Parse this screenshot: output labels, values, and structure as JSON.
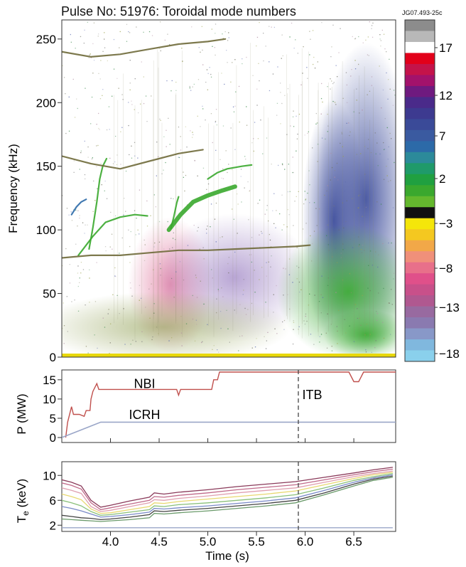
{
  "header": {
    "title": "Pulse No: 51976: Toroidal mode numbers",
    "figure_id": "JG07.493-25c"
  },
  "colors": {
    "axis": "#333333",
    "power_trace": "#c0504d",
    "icrh_trace": "#9aa6c8",
    "te_trace_top": "#8a3a5a",
    "te_trace_bottom": "#555555",
    "itb_marker": "#444444",
    "baseline_band": "#e8d80a"
  },
  "chart_data": [
    {
      "type": "heatmap",
      "name": "spectrogram",
      "ylabel": "Frequency (kHz)",
      "xlabel": "",
      "x_range": [
        3.5,
        6.93
      ],
      "ylim": [
        0,
        265
      ],
      "yticks": [
        0,
        50,
        100,
        150,
        200,
        250
      ],
      "features": [
        {
          "kind": "mode",
          "color_mode": 2,
          "x": [
            3.67,
            3.82,
            3.95,
            4.1,
            4.25,
            4.38
          ],
          "y": [
            80,
            95,
            106,
            110,
            112,
            111
          ]
        },
        {
          "kind": "mode",
          "color_mode": 2,
          "x": [
            4.6,
            4.72,
            4.85,
            5.0,
            5.15,
            5.28
          ],
          "y": [
            100,
            112,
            122,
            127,
            131,
            134
          ]
        },
        {
          "kind": "mode",
          "color_mode": 2,
          "x": [
            3.78,
            3.82,
            3.86,
            3.89,
            3.92,
            3.96
          ],
          "y": [
            85,
            102,
            122,
            140,
            150,
            156
          ]
        },
        {
          "kind": "mode",
          "color_mode": 2,
          "x": [
            4.62,
            4.65,
            4.68,
            4.7
          ],
          "y": [
            101,
            110,
            121,
            126
          ]
        },
        {
          "kind": "mode",
          "color_mode": 2,
          "x": [
            5.0,
            5.1,
            5.2,
            5.35,
            5.45
          ],
          "y": [
            140,
            145,
            148,
            150,
            151
          ]
        },
        {
          "kind": "mode",
          "color_mode": 7,
          "x": [
            3.6,
            3.65,
            3.7,
            3.75
          ],
          "y": [
            112,
            118,
            122,
            124
          ]
        },
        {
          "kind": "mode",
          "color_mode": 0,
          "x": [
            3.5,
            3.8,
            4.1,
            4.4,
            4.7,
            5.0,
            5.3,
            5.6,
            5.9,
            6.05
          ],
          "y": [
            78,
            80,
            80,
            82,
            84,
            84,
            85,
            86,
            87,
            88
          ]
        },
        {
          "kind": "mode",
          "color_mode": 0,
          "x": [
            3.5,
            3.8,
            4.1,
            4.4,
            4.7,
            4.95
          ],
          "y": [
            158,
            152,
            148,
            154,
            160,
            163
          ]
        },
        {
          "kind": "mode",
          "color_mode": 0,
          "x": [
            3.5,
            3.8,
            4.1,
            4.4,
            4.7,
            5.0,
            5.18
          ],
          "y": [
            240,
            236,
            238,
            242,
            246,
            248,
            250
          ]
        }
      ]
    },
    {
      "type": "line",
      "name": "heating-power",
      "ylabel": "P (MW)",
      "xlabel": "",
      "x_range": [
        3.5,
        6.93
      ],
      "ylim": [
        0,
        17
      ],
      "yticks": [
        0,
        5,
        10,
        15
      ],
      "series": [
        {
          "name": "NBI",
          "x": [
            3.54,
            3.56,
            3.6,
            3.62,
            3.66,
            3.68,
            3.73,
            3.75,
            3.79,
            3.8,
            3.82,
            3.86,
            3.88,
            4.68,
            4.7,
            4.72,
            5.04,
            5.06,
            5.1,
            5.12,
            5.18,
            5.2,
            6.45,
            6.5,
            6.55,
            6.6,
            6.93
          ],
          "y": [
            0,
            4,
            8,
            6,
            6,
            6,
            5.5,
            7,
            7,
            10,
            12,
            14,
            12.5,
            12.5,
            11,
            12.5,
            12.5,
            15,
            15,
            17,
            17,
            17,
            17,
            14.5,
            14.5,
            17,
            17
          ]
        },
        {
          "name": "ICRH",
          "x": [
            3.5,
            3.6,
            3.9,
            6.93
          ],
          "y": [
            0,
            1,
            4,
            4
          ]
        }
      ],
      "annotations": [
        {
          "text": "NBI",
          "x": 4.35,
          "y": 12.8
        },
        {
          "text": "ICRH",
          "x": 4.35,
          "y": 4.8
        },
        {
          "text": "ITB",
          "x": 5.97,
          "y": 10
        }
      ],
      "vline": 5.93
    },
    {
      "type": "line",
      "name": "electron-temperature",
      "ylabel": "Te (keV)",
      "xlabel": "Time (s)",
      "xlim": [
        3.5,
        6.93
      ],
      "xticks": [
        4.0,
        4.5,
        5.0,
        5.5,
        6.0,
        6.5
      ],
      "xtick_labels": [
        "4.0",
        "4.5",
        "5.0",
        "5.5",
        "6.0",
        "6.5"
      ],
      "ylim": [
        1,
        12.2
      ],
      "yticks": [
        2,
        6,
        10
      ],
      "x": [
        3.5,
        3.6,
        3.7,
        3.8,
        3.9,
        4.0,
        4.2,
        4.4,
        4.45,
        4.55,
        4.7,
        5.0,
        5.3,
        5.6,
        5.9,
        6.2,
        6.5,
        6.7,
        6.9
      ],
      "series": [
        {
          "y": [
            9.3,
            8.9,
            8.3,
            6.0,
            4.9,
            5.2,
            5.9,
            6.5,
            7.2,
            7.0,
            7.3,
            7.7,
            8.2,
            8.6,
            9.0,
            9.7,
            10.4,
            10.9,
            11.3
          ],
          "color": "#8a3a5a"
        },
        {
          "y": [
            8.8,
            8.4,
            7.8,
            5.6,
            4.5,
            4.8,
            5.4,
            6.0,
            6.6,
            6.5,
            6.8,
            7.2,
            7.7,
            8.1,
            8.5,
            9.3,
            10.1,
            10.6,
            11.0
          ],
          "color": "#c06a8a"
        },
        {
          "y": [
            8.0,
            7.6,
            7.1,
            5.0,
            4.2,
            4.4,
            5.0,
            5.6,
            6.1,
            6.0,
            6.3,
            6.7,
            7.2,
            7.6,
            8.0,
            8.9,
            9.8,
            10.3,
            10.7
          ],
          "color": "#e0a0b0"
        },
        {
          "y": [
            7.0,
            6.6,
            6.1,
            4.6,
            3.9,
            4.0,
            4.5,
            5.0,
            5.6,
            5.5,
            5.8,
            6.2,
            6.6,
            7.0,
            7.5,
            8.5,
            9.5,
            10.1,
            10.5
          ],
          "color": "#e8d870"
        },
        {
          "y": [
            6.0,
            5.6,
            5.1,
            4.2,
            3.6,
            3.7,
            4.1,
            4.5,
            5.1,
            5.0,
            5.3,
            5.6,
            6.0,
            6.4,
            6.9,
            8.0,
            9.2,
            9.8,
            10.3
          ],
          "color": "#8ac07a"
        },
        {
          "y": [
            5.0,
            4.7,
            4.3,
            3.8,
            3.3,
            3.4,
            3.7,
            4.1,
            4.7,
            4.6,
            4.8,
            5.1,
            5.5,
            5.9,
            6.4,
            7.6,
            8.9,
            9.6,
            10.1
          ],
          "color": "#7a8ac8"
        },
        {
          "y": [
            3.6,
            3.4,
            3.2,
            3.1,
            2.9,
            3.0,
            3.3,
            3.7,
            4.3,
            4.2,
            4.4,
            4.7,
            5.1,
            5.5,
            6.0,
            7.2,
            8.6,
            9.4,
            9.9
          ],
          "color": "#444444"
        },
        {
          "y": [
            3.0,
            2.9,
            2.8,
            2.7,
            2.6,
            2.7,
            2.9,
            3.2,
            3.9,
            3.8,
            4.0,
            4.3,
            4.7,
            5.1,
            5.6,
            6.9,
            8.3,
            9.2,
            9.7
          ],
          "color": "#6a9a6a"
        },
        {
          "y": [
            1.6,
            1.6,
            1.6,
            1.6,
            1.6,
            1.6,
            1.6,
            1.6,
            1.6,
            1.6,
            1.6,
            1.6,
            1.6,
            1.6,
            1.6,
            1.6,
            1.6,
            1.6,
            1.6
          ],
          "color": "#9aa6c8"
        }
      ],
      "vline": 5.93
    },
    {
      "type": "heatmap",
      "name": "colorbar",
      "tick_labels": [
        "17",
        "12",
        "7",
        "2",
        "−3",
        "−8",
        "−13",
        "−18"
      ],
      "colors_top_to_bottom": [
        "#8c8c8c",
        "#b8b8b8",
        "#ffffff",
        "#e2001a",
        "#c4134a",
        "#a3126b",
        "#6f1a7f",
        "#4a2a8a",
        "#3d3a90",
        "#3a4a98",
        "#3a5aa0",
        "#2c6aa8",
        "#2c8a9a",
        "#1f9a6a",
        "#20a040",
        "#3aa82e",
        "#64b82e",
        "#111111",
        "#f4e60a",
        "#f4c820",
        "#f2a848",
        "#f0907a",
        "#e8708a",
        "#e0508a",
        "#c8508a",
        "#b05890",
        "#986aa0",
        "#8a7ab0",
        "#8898c8",
        "#80b8de",
        "#8ad0ec"
      ]
    }
  ]
}
